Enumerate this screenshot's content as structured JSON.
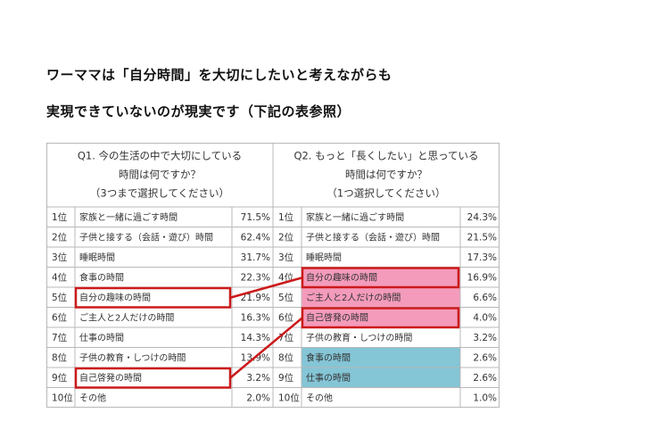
{
  "headline": {
    "line1": "ワーママは「自分時間」を大切にしたいと考えながらも",
    "line2": "実現できていないのが現実です（下記の表参照）"
  },
  "table": {
    "q1": {
      "header_lines": [
        "Q1. 今の生活の中で大切にしている",
        "時間は何ですか？",
        "（3つまで選択してください）"
      ],
      "rows": [
        {
          "rank": "1位",
          "item": "家族と一緒に過ごす時間",
          "pct": "71.5%"
        },
        {
          "rank": "2位",
          "item": "子供と接する（会話・遊び）時間",
          "pct": "62.4%"
        },
        {
          "rank": "3位",
          "item": "睡眠時間",
          "pct": "31.7%"
        },
        {
          "rank": "4位",
          "item": "食事の時間",
          "pct": "22.3%"
        },
        {
          "rank": "5位",
          "item": "自分の趣味の時間",
          "pct": "21.9%"
        },
        {
          "rank": "6位",
          "item": "ご主人と2人だけの時間",
          "pct": "16.3%"
        },
        {
          "rank": "7位",
          "item": "仕事の時間",
          "pct": "14.3%"
        },
        {
          "rank": "8位",
          "item": "子供の教育・しつけの時間",
          "pct": "13.9%"
        },
        {
          "rank": "9位",
          "item": "自己啓発の時間",
          "pct": "3.2%"
        },
        {
          "rank": "10位",
          "item": "その他",
          "pct": "2.0%"
        }
      ]
    },
    "q2": {
      "header_lines": [
        "Q2. もっと「長くしたい」と思っている",
        "時間は何ですか？",
        "（1つ選択してください）"
      ],
      "rows": [
        {
          "rank": "1位",
          "item": "家族と一緒に過ごす時間",
          "pct": "24.3%",
          "fill": "none"
        },
        {
          "rank": "2位",
          "item": "子供と接する（会話・遊び）時間",
          "pct": "21.5%",
          "fill": "none"
        },
        {
          "rank": "3位",
          "item": "睡眠時間",
          "pct": "17.3%",
          "fill": "none"
        },
        {
          "rank": "4位",
          "item": "自分の趣味の時間",
          "pct": "16.9%",
          "fill": "pink"
        },
        {
          "rank": "5位",
          "item": "ご主人と2人だけの時間",
          "pct": "6.6%",
          "fill": "pink"
        },
        {
          "rank": "6位",
          "item": "自己啓発の時間",
          "pct": "4.0%",
          "fill": "pink"
        },
        {
          "rank": "7位",
          "item": "子供の教育・しつけの時間",
          "pct": "3.2%",
          "fill": "none"
        },
        {
          "rank": "8位",
          "item": "食事の時間",
          "pct": "2.6%",
          "fill": "blue"
        },
        {
          "rank": "9位",
          "item": "仕事の時間",
          "pct": "2.6%",
          "fill": "blue"
        },
        {
          "rank": "10位",
          "item": "その他",
          "pct": "1.0%",
          "fill": "none"
        }
      ]
    },
    "highlights": [
      {
        "from_q1_row": 5,
        "to_q2_row": 4
      },
      {
        "from_q1_row": 9,
        "to_q2_row": 6
      }
    ],
    "colors": {
      "pink": "#f49bbb",
      "blue": "#84c5d6",
      "highlight": "#cc1a1a",
      "grid": "#b8b8b8",
      "text": "#333333"
    }
  }
}
